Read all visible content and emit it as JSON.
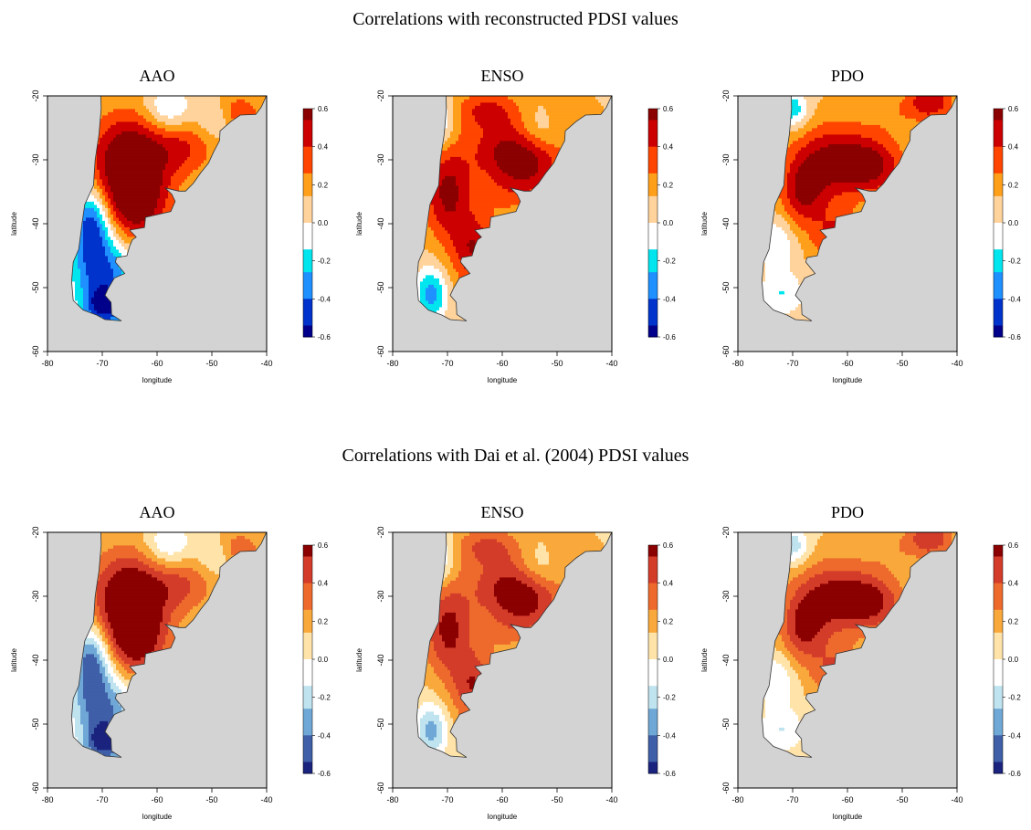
{
  "figure": {
    "rows": [
      {
        "title": "Correlations with reconstructed PDSI values",
        "palette": "bright",
        "panels": [
          {
            "title": "AAO",
            "pattern": "aao"
          },
          {
            "title": "ENSO",
            "pattern": "enso"
          },
          {
            "title": "PDO",
            "pattern": "pdo"
          }
        ]
      },
      {
        "title": "Correlations with Dai et al. (2004) PDSI values",
        "palette": "muted",
        "panels": [
          {
            "title": "AAO",
            "pattern": "aao"
          },
          {
            "title": "ENSO",
            "pattern": "enso"
          },
          {
            "title": "PDO",
            "pattern": "pdo"
          }
        ]
      }
    ],
    "x_axis": {
      "label": "longitude",
      "range": [
        -80,
        -40
      ],
      "ticks": [
        "-80",
        "-70",
        "-60",
        "-50",
        "-40"
      ]
    },
    "y_axis": {
      "label": "latitude",
      "range": [
        -60,
        -20
      ],
      "ticks": [
        "-60",
        "-50",
        "-40",
        "-30",
        "-20"
      ]
    },
    "colorbar": {
      "range": [
        -0.6,
        0.6
      ],
      "ticks": [
        "-0.6",
        "-0.4",
        "-0.2",
        "0.0",
        "0.2",
        "0.4",
        "0.6"
      ]
    },
    "colors": {
      "ocean": "#d3d3d3",
      "coast": "#333333",
      "bright_scale": [
        "#00008b",
        "#0033cc",
        "#1e90ff",
        "#00e5ee",
        "#ffffff",
        "#ffd39b",
        "#ff9f1a",
        "#ff4500",
        "#cc0000",
        "#8b0000"
      ],
      "muted_scale": [
        "#1a237e",
        "#3f5fa8",
        "#6fa8d6",
        "#bfe3ef",
        "#ffffff",
        "#ffe3a8",
        "#f9a83b",
        "#ee6a2c",
        "#d43c2a",
        "#8b0000"
      ]
    }
  }
}
